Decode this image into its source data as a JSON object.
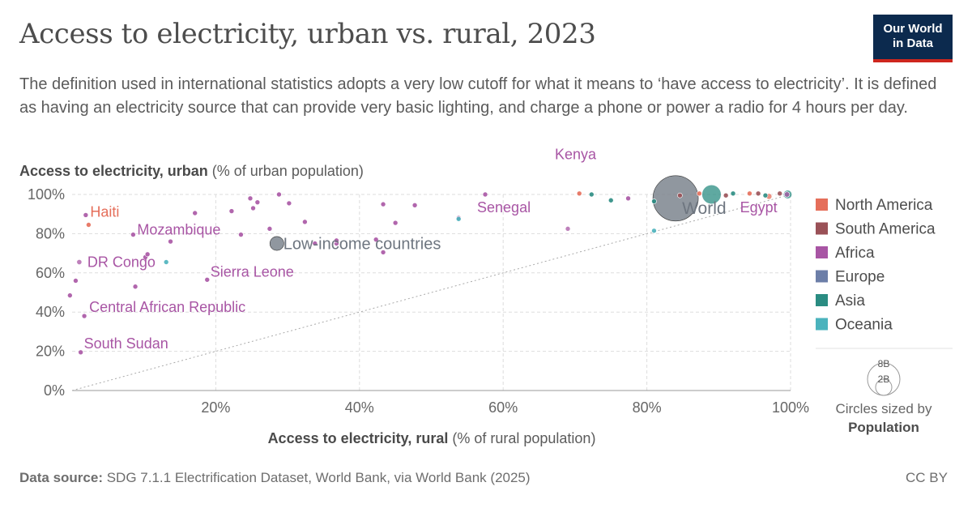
{
  "header": {
    "title": "Access to electricity, urban vs. rural, 2023",
    "subtitle": "The definition used in international statistics adopts a very low cutoff for what it means to ‘have access to electricity’. It is defined as having an electricity source that can provide very basic lighting, and charge a phone or power a radio for 4 hours per day.",
    "logo_line1": "Our World",
    "logo_line2": "in Data"
  },
  "footer": {
    "source_label": "Data source:",
    "source_text": "SDG 7.1.1 Electrification Dataset, World Bank, via World Bank (2025)",
    "license": "CC BY"
  },
  "colors": {
    "North America": "#e56e5a",
    "South America": "#9a5157",
    "Africa": "#a855a4",
    "Europe": "#6c7ea8",
    "Asia": "#2a8c82",
    "Oceania": "#4bb3bd",
    "aggregate": "#7d858e",
    "text": "#5b5b5b",
    "grid": "#dddddd"
  },
  "size_legend": {
    "large_label": "8B",
    "small_label": "2B",
    "caption_line1": "Circles sized by",
    "caption_line2": "Population"
  },
  "chart_data": {
    "type": "scatter",
    "title": "Access to electricity, urban vs. rural, 2023",
    "ylabel_bold": "Access to electricity, urban",
    "ylabel_unit": "(% of urban population)",
    "xlabel_bold": "Access to electricity, rural",
    "xlabel_unit": "(% of rural population)",
    "xlim": [
      0,
      100
    ],
    "ylim": [
      0,
      100
    ],
    "x_ticks": [
      "20%",
      "40%",
      "60%",
      "80%",
      "100%"
    ],
    "y_ticks": [
      "0%",
      "20%",
      "40%",
      "60%",
      "80%",
      "100%"
    ],
    "grid": true,
    "diagonal_reference": true,
    "legend_position": "right",
    "legend": [
      "North America",
      "South America",
      "Africa",
      "Europe",
      "Asia",
      "Oceania"
    ],
    "points": [
      {
        "label": "World",
        "x": 84,
        "y": 98,
        "region": "aggregate",
        "pop": 8.0
      },
      {
        "label": "Low-income countries",
        "x": 28.5,
        "y": 75,
        "region": "aggregate",
        "pop": 0.75
      },
      {
        "label": "Haiti",
        "x": 2.3,
        "y": 84.5,
        "region": "North America",
        "pop": 0.012
      },
      {
        "label": "Mozambique",
        "x": 8.5,
        "y": 79.5,
        "region": "Africa",
        "pop": 0.034
      },
      {
        "label": "DR Congo",
        "x": 1.0,
        "y": 65.5,
        "region": "Africa",
        "pop": 0.1
      },
      {
        "label": "Sierra Leone",
        "x": 18.8,
        "y": 56.5,
        "region": "Africa",
        "pop": 0.009
      },
      {
        "label": "Central African Republic",
        "x": 1.7,
        "y": 38,
        "region": "Africa",
        "pop": 0.005
      },
      {
        "label": "South Sudan",
        "x": 1.2,
        "y": 19.5,
        "region": "Africa",
        "pop": 0.011
      },
      {
        "label": "Senegal",
        "x": 57.5,
        "y": 100,
        "region": "Africa",
        "pop": 0.018
      },
      {
        "label": "Kenya",
        "x": 69,
        "y": 82.5,
        "region": "Africa",
        "pop": 0.055
      },
      {
        "label": "Egypt",
        "x": 99.5,
        "y": 100,
        "region": "Africa",
        "pop": 0.113
      },
      {
        "label": "",
        "x": 1.9,
        "y": 89.5,
        "region": "Africa",
        "pop": 0.01
      },
      {
        "label": "",
        "x": 0.5,
        "y": 56,
        "region": "Africa",
        "pop": 0.01
      },
      {
        "label": "",
        "x": -0.3,
        "y": 48.5,
        "region": "Africa",
        "pop": 0.01
      },
      {
        "label": "",
        "x": 8.8,
        "y": 53,
        "region": "Africa",
        "pop": 0.01
      },
      {
        "label": "",
        "x": 10.2,
        "y": 68,
        "region": "Africa",
        "pop": 0.01
      },
      {
        "label": "",
        "x": 10.5,
        "y": 69.5,
        "region": "Africa",
        "pop": 0.01
      },
      {
        "label": "",
        "x": 13.7,
        "y": 76,
        "region": "Africa",
        "pop": 0.01
      },
      {
        "label": "",
        "x": 17.1,
        "y": 90.5,
        "region": "Africa",
        "pop": 0.01
      },
      {
        "label": "",
        "x": 22.2,
        "y": 91.5,
        "region": "Africa",
        "pop": 0.01
      },
      {
        "label": "",
        "x": 23.5,
        "y": 79.5,
        "region": "Africa",
        "pop": 0.01
      },
      {
        "label": "",
        "x": 24.8,
        "y": 98,
        "region": "Africa",
        "pop": 0.01
      },
      {
        "label": "",
        "x": 25.2,
        "y": 93,
        "region": "Africa",
        "pop": 0.01
      },
      {
        "label": "",
        "x": 25.8,
        "y": 96,
        "region": "Africa",
        "pop": 0.01
      },
      {
        "label": "",
        "x": 27.5,
        "y": 82.5,
        "region": "Africa",
        "pop": 0.01
      },
      {
        "label": "",
        "x": 28.8,
        "y": 100,
        "region": "Africa",
        "pop": 0.01
      },
      {
        "label": "",
        "x": 30.2,
        "y": 95.5,
        "region": "Africa",
        "pop": 0.01
      },
      {
        "label": "",
        "x": 32.4,
        "y": 86,
        "region": "Africa",
        "pop": 0.01
      },
      {
        "label": "",
        "x": 33.8,
        "y": 75,
        "region": "Africa",
        "pop": 0.01
      },
      {
        "label": "",
        "x": 36.8,
        "y": 75,
        "region": "Africa",
        "pop": 0.01
      },
      {
        "label": "",
        "x": 36.8,
        "y": 76.5,
        "region": "Africa",
        "pop": 0.01
      },
      {
        "label": "",
        "x": 42.3,
        "y": 77,
        "region": "Africa",
        "pop": 0.01
      },
      {
        "label": "",
        "x": 43.3,
        "y": 95,
        "region": "Africa",
        "pop": 0.01
      },
      {
        "label": "",
        "x": 43.3,
        "y": 70.5,
        "region": "Africa",
        "pop": 0.01
      },
      {
        "label": "",
        "x": 45,
        "y": 85.5,
        "region": "Africa",
        "pop": 0.01
      },
      {
        "label": "",
        "x": 47.7,
        "y": 94.5,
        "region": "Africa",
        "pop": 0.01
      },
      {
        "label": "",
        "x": 53.8,
        "y": 88,
        "region": "Africa",
        "pop": 0.01
      },
      {
        "label": "",
        "x": 77.4,
        "y": 98,
        "region": "Africa",
        "pop": 0.01
      },
      {
        "label": "",
        "x": 13.1,
        "y": 65.5,
        "region": "Oceania",
        "pop": 0.01
      },
      {
        "label": "",
        "x": 53.8,
        "y": 87.5,
        "region": "Oceania",
        "pop": 0.01
      },
      {
        "label": "",
        "x": 81,
        "y": 81.5,
        "region": "Oceania",
        "pop": 0.01
      },
      {
        "label": "",
        "x": 72.3,
        "y": 100,
        "region": "Asia",
        "pop": 0.01
      },
      {
        "label": "",
        "x": 75,
        "y": 97,
        "region": "Asia",
        "pop": 0.01
      },
      {
        "label": "",
        "x": 81,
        "y": 96.5,
        "region": "Asia",
        "pop": 0.01
      },
      {
        "label": "",
        "x": 92,
        "y": 100.5,
        "region": "Asia",
        "pop": 0.01
      },
      {
        "label": "",
        "x": 96.5,
        "y": 99.5,
        "region": "Asia",
        "pop": 0.01
      },
      {
        "label": "",
        "x": 99.6,
        "y": 100,
        "region": "Asia",
        "pop": 0.28
      },
      {
        "label": "",
        "x": 89,
        "y": 100,
        "region": "Asia",
        "pop": 1.43
      },
      {
        "label": "",
        "x": 70.6,
        "y": 100.5,
        "region": "North America",
        "pop": 0.01
      },
      {
        "label": "",
        "x": 87.3,
        "y": 100.5,
        "region": "North America",
        "pop": 0.01
      },
      {
        "label": "",
        "x": 94.3,
        "y": 100.5,
        "region": "North America",
        "pop": 0.01
      },
      {
        "label": "",
        "x": 97,
        "y": 99,
        "region": "North America",
        "pop": 0.13
      },
      {
        "label": "",
        "x": 84.6,
        "y": 99.5,
        "region": "South America",
        "pop": 0.01
      },
      {
        "label": "",
        "x": 91,
        "y": 99.5,
        "region": "South America",
        "pop": 0.01
      },
      {
        "label": "",
        "x": 95.5,
        "y": 100.5,
        "region": "South America",
        "pop": 0.01
      },
      {
        "label": "",
        "x": 98.5,
        "y": 100.5,
        "region": "South America",
        "pop": 0.01
      }
    ]
  }
}
